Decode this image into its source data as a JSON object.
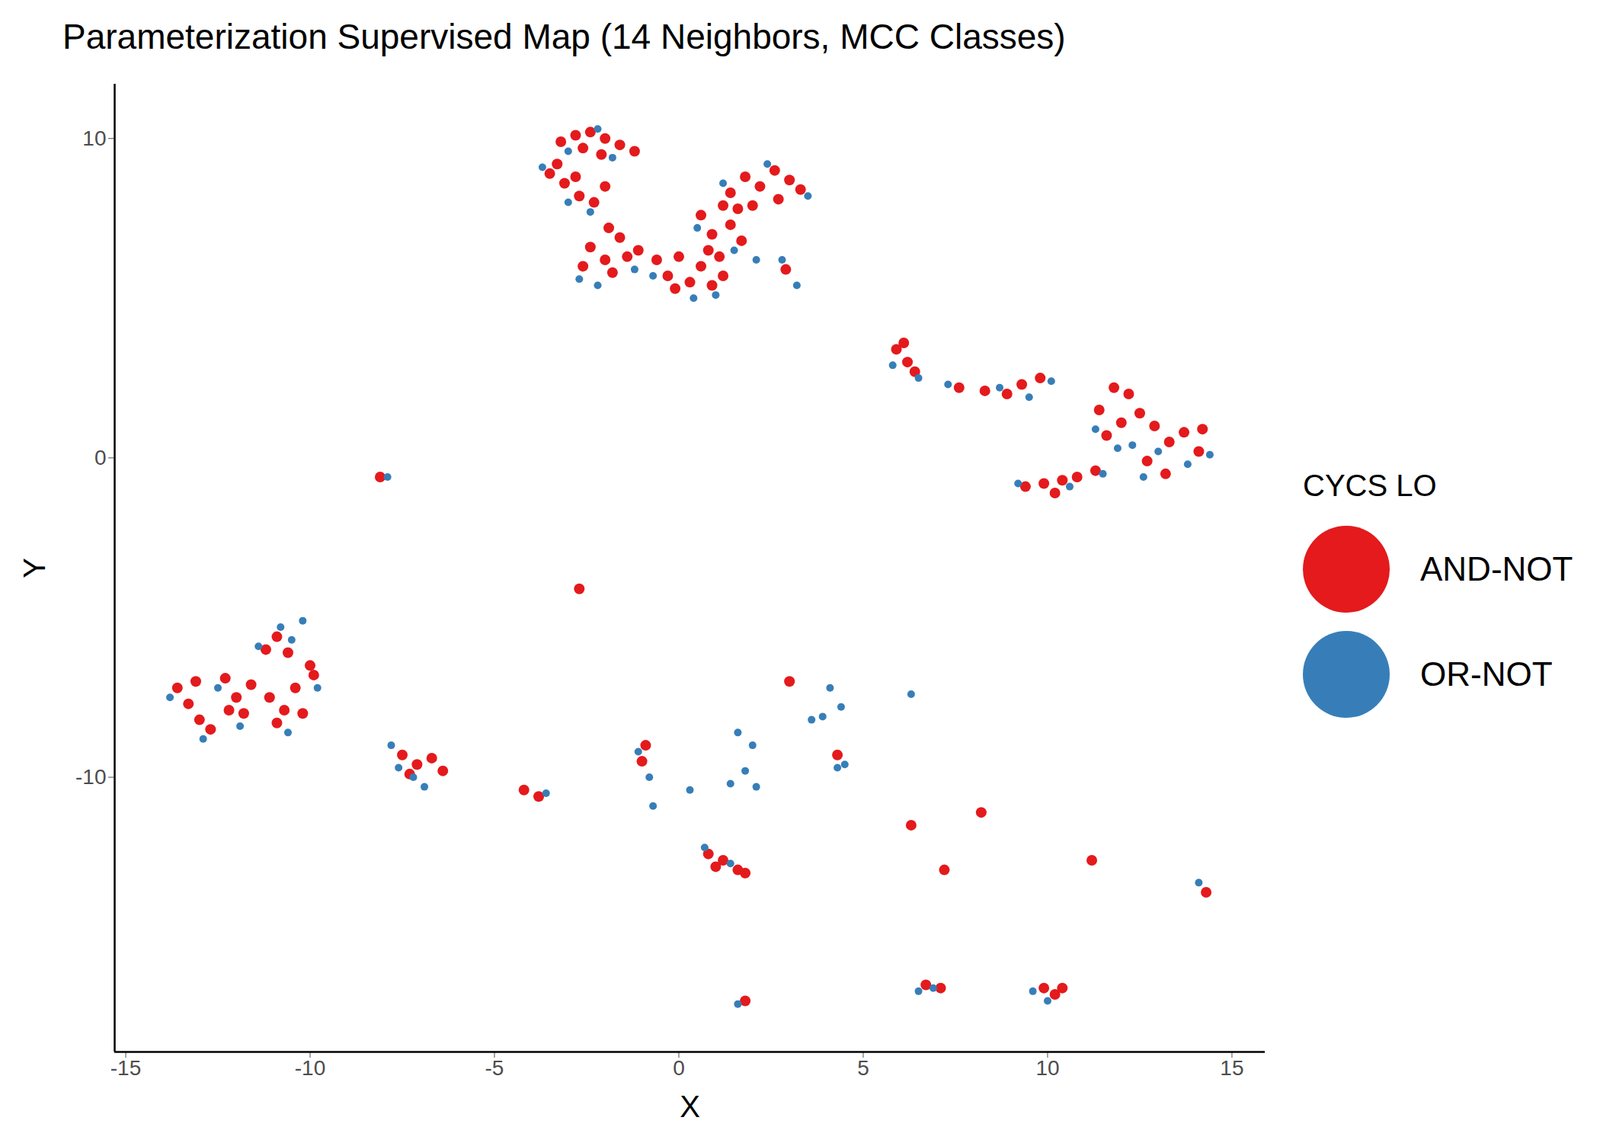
{
  "chart_data": {
    "type": "scatter",
    "title": "Parameterization Supervised Map (14 Neighbors, MCC Classes)",
    "x_label": "X",
    "y_label": "Y",
    "legend_title": "CYCS LO",
    "legend": "right",
    "grid": false,
    "xlim": [
      -15.3,
      15.9
    ],
    "ylim": [
      -18.6,
      11.7
    ],
    "xticks": [
      -15,
      -10,
      -5,
      0,
      5,
      10,
      15
    ],
    "yticks": [
      -10,
      0,
      10
    ],
    "series": [
      {
        "name": "AND-NOT",
        "color": "#E41A1C",
        "x": [
          -3.2,
          -2.8,
          -2.4,
          -2.0,
          -1.6,
          -1.2,
          -2.6,
          -2.1,
          -3.5,
          -3.1,
          -2.7,
          -2.3,
          -2.8,
          -2.0,
          -3.3,
          -2.6,
          -2.4,
          -2.0,
          -1.6,
          -1.4,
          -1.1,
          -1.8,
          -1.9,
          -0.6,
          -0.3,
          0.0,
          0.3,
          0.6,
          0.9,
          1.2,
          -0.1,
          0.6,
          0.9,
          1.2,
          1.4,
          1.7,
          0.8,
          1.1,
          1.4,
          1.8,
          2.2,
          2.6,
          3.0,
          3.3,
          2.0,
          2.7,
          1.6,
          2.9,
          5.9,
          6.2,
          6.1,
          6.4,
          7.6,
          8.3,
          8.9,
          9.3,
          9.8,
          11.4,
          11.8,
          12.2,
          12.0,
          11.6,
          12.5,
          12.9,
          13.3,
          13.7,
          14.1,
          12.7,
          13.2,
          14.2,
          9.4,
          9.9,
          10.4,
          10.8,
          11.3,
          10.2,
          -8.1,
          -13.6,
          -13.3,
          -13.0,
          -12.7,
          -13.1,
          -12.3,
          -12.0,
          -11.8,
          -11.6,
          -12.2,
          -11.1,
          -10.7,
          -10.4,
          -10.9,
          -10.2,
          -11.2,
          -10.6,
          -10.0,
          -10.9,
          -9.9,
          -7.5,
          -7.1,
          -6.7,
          -6.4,
          -7.3,
          -4.2,
          -3.8,
          -0.9,
          -1.0,
          4.3,
          0.8,
          1.2,
          1.6,
          1.0,
          1.8,
          6.7,
          7.1,
          9.9,
          10.2,
          10.4,
          1.8,
          3.0,
          6.3,
          8.2,
          11.2,
          14.3,
          -2.7,
          7.2
        ],
        "y": [
          9.9,
          10.1,
          10.2,
          10.0,
          9.8,
          9.6,
          9.7,
          9.5,
          8.9,
          8.6,
          8.2,
          8.0,
          8.8,
          8.5,
          9.2,
          6.0,
          6.6,
          6.2,
          6.9,
          6.3,
          6.5,
          5.8,
          7.2,
          6.2,
          5.7,
          6.3,
          5.5,
          6.0,
          5.4,
          5.7,
          5.3,
          7.6,
          7.0,
          7.9,
          7.3,
          6.8,
          6.5,
          6.3,
          8.3,
          8.8,
          8.5,
          9.0,
          8.7,
          8.4,
          7.9,
          8.1,
          7.8,
          5.9,
          3.4,
          3.0,
          3.6,
          2.7,
          2.2,
          2.1,
          2.0,
          2.3,
          2.5,
          1.5,
          2.2,
          2.0,
          1.1,
          0.7,
          1.4,
          1.0,
          0.5,
          0.8,
          0.2,
          -0.1,
          -0.5,
          0.9,
          -0.9,
          -0.8,
          -0.7,
          -0.6,
          -0.4,
          -1.1,
          -0.6,
          -7.2,
          -7.7,
          -8.2,
          -8.5,
          -7.0,
          -6.9,
          -7.5,
          -8.0,
          -7.1,
          -7.9,
          -7.5,
          -7.9,
          -7.2,
          -8.3,
          -8.0,
          -6.0,
          -6.1,
          -6.5,
          -5.6,
          -6.8,
          -9.3,
          -9.6,
          -9.4,
          -9.8,
          -9.9,
          -10.4,
          -10.6,
          -9.0,
          -9.5,
          -9.3,
          -12.4,
          -12.6,
          -12.9,
          -12.8,
          -13.0,
          -16.5,
          -16.6,
          -16.6,
          -16.8,
          -16.6,
          -17.0,
          -7.0,
          -11.5,
          -11.1,
          -12.6,
          -13.6,
          -4.1,
          -12.9
        ]
      },
      {
        "name": "OR-NOT",
        "color": "#377EB8",
        "x": [
          -3.0,
          -2.2,
          -1.8,
          -3.7,
          -3.0,
          -2.4,
          -2.7,
          -2.2,
          -1.2,
          -0.7,
          0.4,
          1.0,
          0.5,
          1.5,
          2.1,
          1.2,
          2.4,
          3.5,
          3.2,
          2.8,
          5.8,
          6.5,
          7.3,
          8.7,
          9.5,
          10.1,
          11.3,
          12.3,
          13.0,
          13.8,
          12.6,
          14.4,
          11.9,
          9.2,
          10.6,
          11.5,
          -7.9,
          -13.8,
          -12.9,
          -11.9,
          -12.5,
          -10.6,
          -10.2,
          -10.5,
          -9.8,
          -11.4,
          -10.8,
          -7.8,
          -7.6,
          -6.9,
          -7.2,
          -3.6,
          -0.8,
          -1.1,
          4.5,
          4.3,
          0.7,
          1.4,
          6.5,
          6.9,
          9.6,
          10.0,
          1.6,
          4.1,
          6.3,
          3.6,
          3.9,
          4.4,
          1.6,
          2.0,
          1.8,
          1.4,
          2.1,
          0.3,
          -0.7,
          14.1
        ],
        "y": [
          9.6,
          10.3,
          9.4,
          9.1,
          8.0,
          7.7,
          5.6,
          5.4,
          5.9,
          5.7,
          5.0,
          5.1,
          7.2,
          6.5,
          6.2,
          8.6,
          9.2,
          8.2,
          5.4,
          6.2,
          2.9,
          2.5,
          2.3,
          2.2,
          1.9,
          2.4,
          0.9,
          0.4,
          0.2,
          -0.2,
          -0.6,
          0.1,
          0.3,
          -0.8,
          -0.9,
          -0.5,
          -0.6,
          -7.5,
          -8.8,
          -8.4,
          -7.2,
          -8.6,
          -5.1,
          -5.7,
          -7.2,
          -5.9,
          -5.3,
          -9.0,
          -9.7,
          -10.3,
          -10.0,
          -10.5,
          -10.0,
          -9.2,
          -9.6,
          -9.7,
          -12.2,
          -12.7,
          -16.7,
          -16.6,
          -16.7,
          -17.0,
          -17.1,
          -7.2,
          -7.4,
          -8.2,
          -8.1,
          -7.8,
          -8.6,
          -9.0,
          -9.8,
          -10.2,
          -10.3,
          -10.4,
          -10.9,
          -13.3
        ]
      }
    ]
  }
}
